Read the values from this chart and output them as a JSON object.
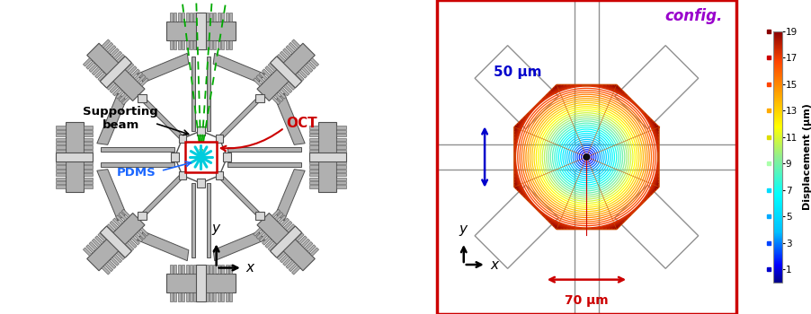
{
  "fig_width": 9.03,
  "fig_height": 3.5,
  "dpi": 100,
  "left_panel": {
    "bg_color": "#ffffff",
    "labels": {
      "supporting_beam": "Supporting\nbeam",
      "oct": "OCT",
      "pdms": "PDMS"
    },
    "label_colors": {
      "supporting_beam": "#000000",
      "oct": "#cc0000",
      "pdms": "#1a66ff"
    },
    "green_dashes_color": "#00aa00",
    "center_box_color": "#cc0000",
    "center_star_color": "#00cccc"
  },
  "right_panel": {
    "bg_color": "#ffffff",
    "border_color": "#cc0000",
    "title": "config.",
    "title_color": "#9900cc",
    "colorbar_ticks": [
      1,
      3,
      5,
      7,
      9,
      11,
      13,
      15,
      17,
      19
    ],
    "colorbar_label": "Displacement (μm)",
    "dim_50_label": "50 μm",
    "dim_50_color": "#0000cc",
    "dim_70_label": "70 μm",
    "dim_70_color": "#cc0000"
  }
}
